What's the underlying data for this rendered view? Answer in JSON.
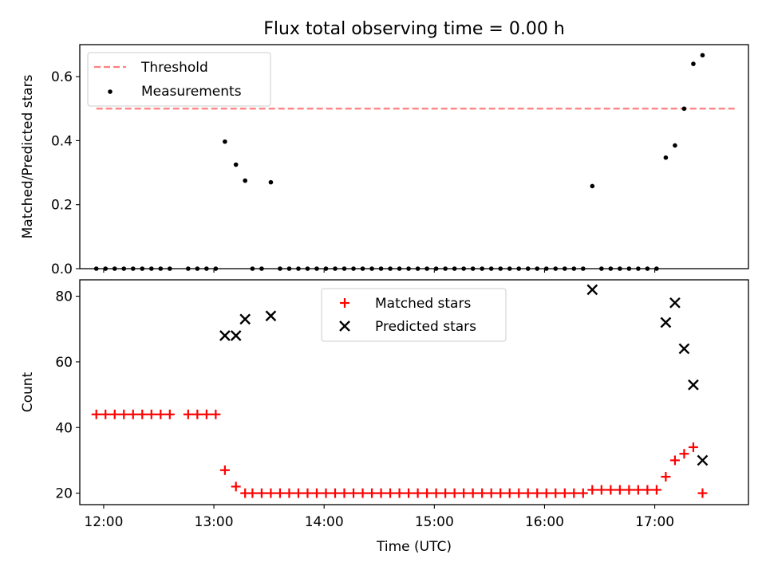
{
  "title": "Flux total observing time = 0.00 h",
  "colors": {
    "threshold": "#ff8080",
    "measurements": "#000000",
    "matched": "#ff0000",
    "predicted": "#000000",
    "axes": "#000000"
  },
  "x_ticks": [
    "12:00",
    "13:00",
    "14:00",
    "15:00",
    "16:00",
    "17:00"
  ],
  "xlabel": "Time (UTC)",
  "chart_data": [
    {
      "type": "scatter",
      "ylabel": "Matched/Predicted stars",
      "xlim": [
        "11:47",
        "17:51"
      ],
      "ylim": [
        0,
        0.7
      ],
      "yticks": [
        0.0,
        0.2,
        0.4,
        0.6
      ],
      "ytick_labels": [
        "0.0",
        "0.2",
        "0.4",
        "0.6"
      ],
      "grid": false,
      "legend_position": "upper left",
      "threshold": {
        "name": "Threshold",
        "value": 0.5,
        "x_range": [
          "11:56",
          "17:44"
        ],
        "style": "dashed"
      },
      "series": [
        {
          "name": "Measurements",
          "marker": "dot",
          "points": [
            [
              "11:56",
              0.0
            ],
            [
              "12:01",
              0.0
            ],
            [
              "12:06",
              0.0
            ],
            [
              "12:11",
              0.0
            ],
            [
              "12:16",
              0.0
            ],
            [
              "12:21",
              0.0
            ],
            [
              "12:26",
              0.0
            ],
            [
              "12:31",
              0.0
            ],
            [
              "12:36",
              0.0
            ],
            [
              "12:46",
              0.0
            ],
            [
              "12:51",
              0.0
            ],
            [
              "12:56",
              0.0
            ],
            [
              "13:01",
              0.0
            ],
            [
              "13:06",
              0.397
            ],
            [
              "13:12",
              0.325
            ],
            [
              "13:17",
              0.275
            ],
            [
              "13:21",
              0.0
            ],
            [
              "13:26",
              0.0
            ],
            [
              "13:31",
              0.27
            ],
            [
              "13:36",
              0.0
            ],
            [
              "13:41",
              0.0
            ],
            [
              "13:46",
              0.0
            ],
            [
              "13:51",
              0.0
            ],
            [
              "13:56",
              0.0
            ],
            [
              "14:01",
              0.0
            ],
            [
              "14:06",
              0.0
            ],
            [
              "14:11",
              0.0
            ],
            [
              "14:16",
              0.0
            ],
            [
              "14:21",
              0.0
            ],
            [
              "14:26",
              0.0
            ],
            [
              "14:31",
              0.0
            ],
            [
              "14:36",
              0.0
            ],
            [
              "14:41",
              0.0
            ],
            [
              "14:46",
              0.0
            ],
            [
              "14:51",
              0.0
            ],
            [
              "14:56",
              0.0
            ],
            [
              "15:01",
              0.0
            ],
            [
              "15:06",
              0.0
            ],
            [
              "15:11",
              0.0
            ],
            [
              "15:16",
              0.0
            ],
            [
              "15:21",
              0.0
            ],
            [
              "15:26",
              0.0
            ],
            [
              "15:31",
              0.0
            ],
            [
              "15:36",
              0.0
            ],
            [
              "15:41",
              0.0
            ],
            [
              "15:46",
              0.0
            ],
            [
              "15:51",
              0.0
            ],
            [
              "15:56",
              0.0
            ],
            [
              "16:01",
              0.0
            ],
            [
              "16:06",
              0.0
            ],
            [
              "16:11",
              0.0
            ],
            [
              "16:16",
              0.0
            ],
            [
              "16:21",
              0.0
            ],
            [
              "16:26",
              0.258
            ],
            [
              "16:31",
              0.0
            ],
            [
              "16:36",
              0.0
            ],
            [
              "16:41",
              0.0
            ],
            [
              "16:46",
              0.0
            ],
            [
              "16:51",
              0.0
            ],
            [
              "16:56",
              0.0
            ],
            [
              "17:01",
              0.0
            ],
            [
              "17:06",
              0.347
            ],
            [
              "17:11",
              0.385
            ],
            [
              "17:16",
              0.5
            ],
            [
              "17:21",
              0.64
            ],
            [
              "17:26",
              0.667
            ]
          ]
        }
      ]
    },
    {
      "type": "scatter",
      "ylabel": "Count",
      "xlim": [
        "11:47",
        "17:51"
      ],
      "ylim": [
        16.5,
        85
      ],
      "yticks": [
        20,
        40,
        60,
        80
      ],
      "ytick_labels": [
        "20",
        "40",
        "60",
        "80"
      ],
      "grid": false,
      "legend_position": "upper center",
      "series": [
        {
          "name": "Matched stars",
          "marker": "plus",
          "points": [
            [
              "11:56",
              44
            ],
            [
              "12:01",
              44
            ],
            [
              "12:06",
              44
            ],
            [
              "12:11",
              44
            ],
            [
              "12:16",
              44
            ],
            [
              "12:21",
              44
            ],
            [
              "12:26",
              44
            ],
            [
              "12:31",
              44
            ],
            [
              "12:36",
              44
            ],
            [
              "12:46",
              44
            ],
            [
              "12:51",
              44
            ],
            [
              "12:56",
              44
            ],
            [
              "13:01",
              44
            ],
            [
              "13:06",
              27
            ],
            [
              "13:12",
              22
            ],
            [
              "13:17",
              20
            ],
            [
              "13:21",
              20
            ],
            [
              "13:26",
              20
            ],
            [
              "13:31",
              20
            ],
            [
              "13:36",
              20
            ],
            [
              "13:41",
              20
            ],
            [
              "13:46",
              20
            ],
            [
              "13:51",
              20
            ],
            [
              "13:56",
              20
            ],
            [
              "14:01",
              20
            ],
            [
              "14:06",
              20
            ],
            [
              "14:11",
              20
            ],
            [
              "14:16",
              20
            ],
            [
              "14:21",
              20
            ],
            [
              "14:26",
              20
            ],
            [
              "14:31",
              20
            ],
            [
              "14:36",
              20
            ],
            [
              "14:41",
              20
            ],
            [
              "14:46",
              20
            ],
            [
              "14:51",
              20
            ],
            [
              "14:56",
              20
            ],
            [
              "15:01",
              20
            ],
            [
              "15:06",
              20
            ],
            [
              "15:11",
              20
            ],
            [
              "15:16",
              20
            ],
            [
              "15:21",
              20
            ],
            [
              "15:26",
              20
            ],
            [
              "15:31",
              20
            ],
            [
              "15:36",
              20
            ],
            [
              "15:41",
              20
            ],
            [
              "15:46",
              20
            ],
            [
              "15:51",
              20
            ],
            [
              "15:56",
              20
            ],
            [
              "16:01",
              20
            ],
            [
              "16:06",
              20
            ],
            [
              "16:11",
              20
            ],
            [
              "16:16",
              20
            ],
            [
              "16:21",
              20
            ],
            [
              "16:26",
              21
            ],
            [
              "16:31",
              21
            ],
            [
              "16:36",
              21
            ],
            [
              "16:41",
              21
            ],
            [
              "16:46",
              21
            ],
            [
              "16:51",
              21
            ],
            [
              "16:56",
              21
            ],
            [
              "17:01",
              21
            ],
            [
              "17:06",
              25
            ],
            [
              "17:11",
              30
            ],
            [
              "17:16",
              32
            ],
            [
              "17:21",
              34
            ],
            [
              "17:26",
              20
            ]
          ]
        },
        {
          "name": "Predicted stars",
          "marker": "x",
          "points": [
            [
              "13:06",
              68
            ],
            [
              "13:12",
              68
            ],
            [
              "13:17",
              73
            ],
            [
              "13:31",
              74
            ],
            [
              "16:26",
              82
            ],
            [
              "17:06",
              72
            ],
            [
              "17:11",
              78
            ],
            [
              "17:16",
              64
            ],
            [
              "17:21",
              53
            ],
            [
              "17:26",
              30
            ]
          ]
        }
      ]
    }
  ]
}
